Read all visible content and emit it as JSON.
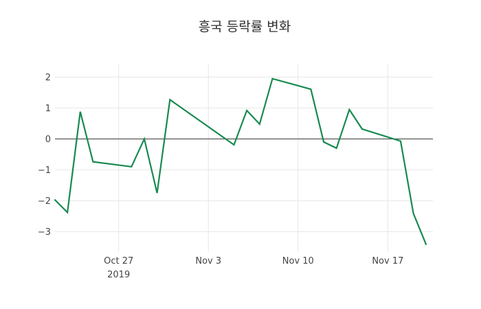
{
  "chart_data": {
    "type": "line",
    "title": "흥국 등락률 변화",
    "xlabel": "",
    "ylabel": "",
    "legend": "none",
    "grid": true,
    "zero_line": true,
    "ylim": [
      -3.64,
      2.38
    ],
    "x": [
      "2019-10-22",
      "2019-10-23",
      "2019-10-24",
      "2019-10-25",
      "2019-10-28",
      "2019-10-29",
      "2019-10-30",
      "2019-10-31",
      "2019-11-05",
      "2019-11-06",
      "2019-11-07",
      "2019-11-08",
      "2019-11-11",
      "2019-11-12",
      "2019-11-13",
      "2019-11-14",
      "2019-11-15",
      "2019-11-18",
      "2019-11-19",
      "2019-11-20"
    ],
    "series": [
      {
        "name": "등락률",
        "values": [
          -1.96,
          -2.38,
          0.88,
          -0.74,
          -0.9,
          0.0,
          -1.75,
          1.27,
          -0.19,
          0.92,
          0.48,
          1.95,
          1.61,
          -0.1,
          -0.3,
          0.95,
          0.32,
          -0.07,
          -2.41,
          -3.43
        ]
      }
    ],
    "x_ticks": [
      {
        "label": "Oct 27",
        "sublabel": "2019",
        "date": "2019-10-27"
      },
      {
        "label": "Nov 3",
        "sublabel": "",
        "date": "2019-11-03"
      },
      {
        "label": "Nov 10",
        "sublabel": "",
        "date": "2019-11-10"
      },
      {
        "label": "Nov 17",
        "sublabel": "",
        "date": "2019-11-17"
      }
    ],
    "y_ticks": [
      {
        "label": "2",
        "value": 2
      },
      {
        "label": "1",
        "value": 1
      },
      {
        "label": "0",
        "value": 0
      },
      {
        "label": "−1",
        "value": -1
      },
      {
        "label": "−2",
        "value": -2
      },
      {
        "label": "−3",
        "value": -3
      }
    ],
    "colors": {
      "line": "#178a50",
      "grid": "#e6e6e6",
      "zero_line": "#444444",
      "tick_label": "#444444",
      "title": "#2f2f2f",
      "background": "#ffffff"
    }
  }
}
